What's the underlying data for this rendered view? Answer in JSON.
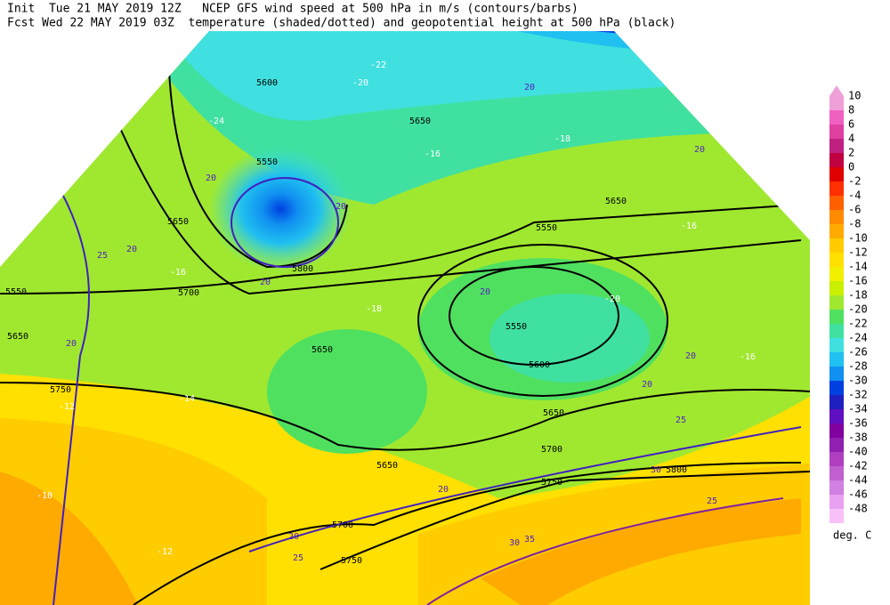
{
  "header": {
    "line1": "Init  Tue 21 MAY 2019 12Z   NCEP GFS wind speed at 500 hPa in m/s (contours/barbs)",
    "line2": "Fcst Wed 22 MAY 2019 03Z  temperature (shaded/dotted) and geopotential height at 500 hPa (black)"
  },
  "colorbar": {
    "unit": "deg. C",
    "entries": [
      {
        "value": 10,
        "color": "#f0a0d8"
      },
      {
        "value": 8,
        "color": "#f060c0"
      },
      {
        "value": 6,
        "color": "#e040a0"
      },
      {
        "value": 4,
        "color": "#c02080"
      },
      {
        "value": 2,
        "color": "#c00040"
      },
      {
        "value": 0,
        "color": "#e00000"
      },
      {
        "value": -2,
        "color": "#ff3000"
      },
      {
        "value": -4,
        "color": "#ff6000"
      },
      {
        "value": -6,
        "color": "#ff8c00"
      },
      {
        "value": -8,
        "color": "#ffaa00"
      },
      {
        "value": -10,
        "color": "#ffcc00"
      },
      {
        "value": -12,
        "color": "#ffe000"
      },
      {
        "value": -14,
        "color": "#f0f000"
      },
      {
        "value": -16,
        "color": "#c8f000"
      },
      {
        "value": -18,
        "color": "#a0e830"
      },
      {
        "value": -20,
        "color": "#50e060"
      },
      {
        "value": -22,
        "color": "#40e0a0"
      },
      {
        "value": -24,
        "color": "#40e0e0"
      },
      {
        "value": -26,
        "color": "#20c0f0"
      },
      {
        "value": -28,
        "color": "#1090f0"
      },
      {
        "value": -30,
        "color": "#0040e0"
      },
      {
        "value": -32,
        "color": "#2020c0"
      },
      {
        "value": -34,
        "color": "#6010c0"
      },
      {
        "value": -36,
        "color": "#8000a0"
      },
      {
        "value": -38,
        "color": "#9020b0"
      },
      {
        "value": -40,
        "color": "#b040c0"
      },
      {
        "value": -42,
        "color": "#c060d0"
      },
      {
        "value": -44,
        "color": "#d080e0"
      },
      {
        "value": -46,
        "color": "#e8a0f0"
      },
      {
        "value": -48,
        "color": "#f8c0f8"
      }
    ]
  },
  "map_labels": {
    "heights": [
      5600,
      5550,
      5650,
      5700,
      5550,
      5650,
      5750,
      5650,
      5650,
      5650,
      5550,
      5550,
      5600,
      5650,
      5650,
      5700,
      5750,
      5800,
      5700,
      5750,
      5800
    ],
    "winds": [
      20,
      20,
      25,
      20,
      20,
      20,
      20,
      20,
      20,
      25,
      20,
      20,
      25,
      30,
      35,
      30,
      25,
      20,
      20
    ],
    "temperatures": [
      -22,
      -20,
      -24,
      -16,
      -16,
      -18,
      -20,
      -16,
      -16,
      -14,
      -12,
      -10,
      -12,
      -18
    ]
  }
}
